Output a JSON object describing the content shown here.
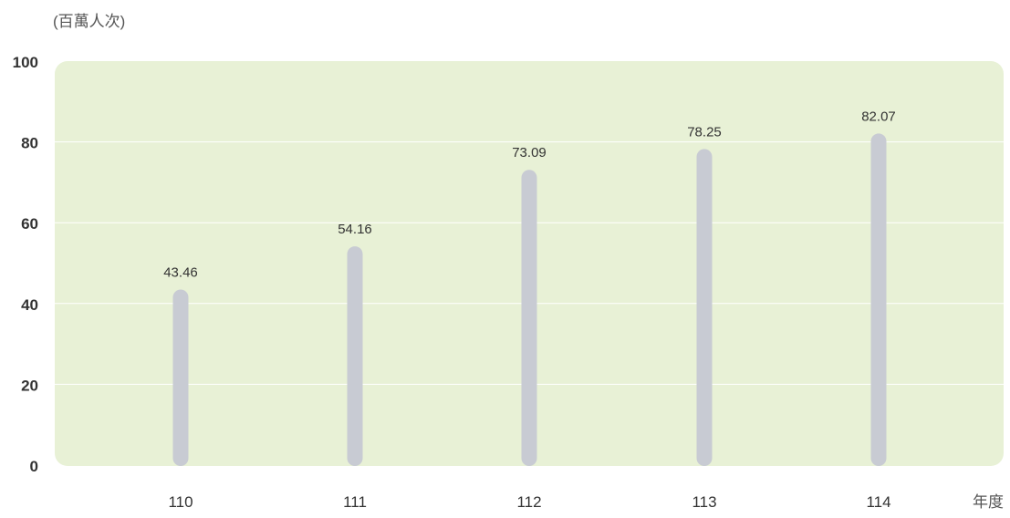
{
  "chart_data": {
    "type": "bar",
    "ylabel": "(百萬人次)",
    "xlabel": "年度",
    "categories": [
      "110",
      "111",
      "112",
      "113",
      "114"
    ],
    "values": [
      43.46,
      54.16,
      73.09,
      78.25,
      82.07
    ],
    "value_labels": [
      "43.46",
      "54.16",
      "73.09",
      "78.25",
      "82.07"
    ],
    "ylim": [
      0,
      100
    ],
    "yticks": [
      0,
      20,
      40,
      60,
      80,
      100
    ],
    "ytick_labels": [
      "0",
      "20",
      "40",
      "60",
      "80",
      "100"
    ],
    "grid": true,
    "colors": {
      "plot_background": "#e8f1d6",
      "bar": "#c8cbd3",
      "gridline": "#ffffff",
      "text": "#333333"
    }
  }
}
